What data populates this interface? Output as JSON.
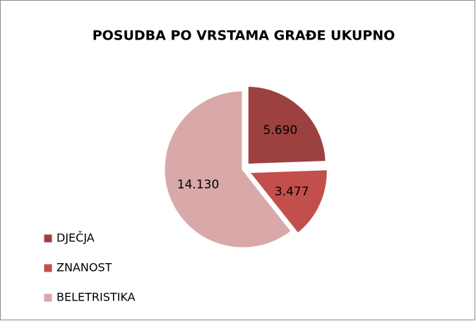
{
  "chart_data": {
    "type": "pie",
    "title": "POSUDBA PO VRSTAMA GRAĐE UKUPNO",
    "categories": [
      "DJEČJA",
      "ZNANOST",
      "BELETRISTIKA"
    ],
    "values": [
      5690,
      3477,
      14130
    ],
    "value_labels": [
      "5.690",
      "3.477",
      "14.130"
    ],
    "colors": [
      "#9c4040",
      "#c24f4c",
      "#d9a9a9"
    ],
    "legend": "left"
  }
}
